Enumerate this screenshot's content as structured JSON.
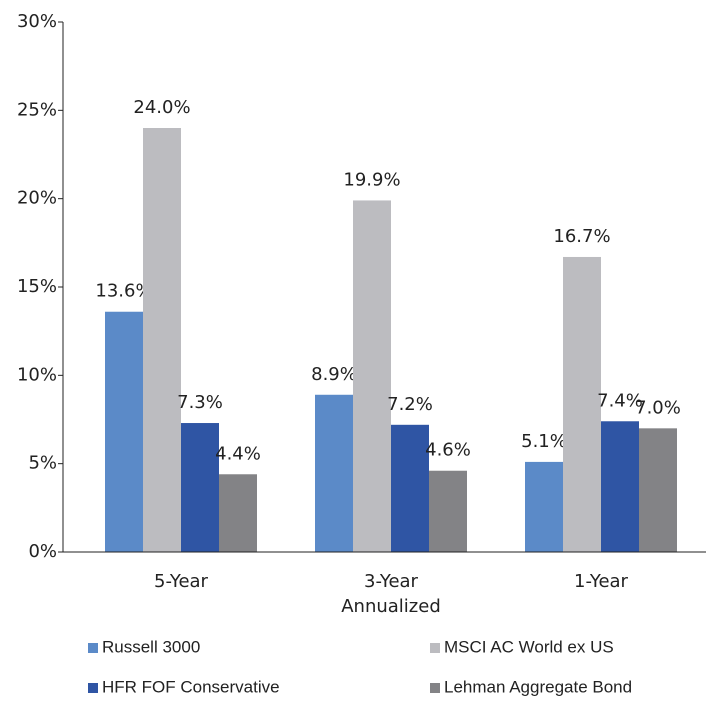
{
  "chart_data": {
    "type": "bar",
    "categories": [
      "5-Year",
      "3-Year",
      "1-Year"
    ],
    "xlabel": "Annualized",
    "series": [
      {
        "name": "Russell 3000",
        "color": "#5b8ac8",
        "values": [
          13.6,
          8.9,
          5.1
        ],
        "value_labels": [
          "13.6%",
          "8.9%",
          "5.1%"
        ]
      },
      {
        "name": "MSCI AC World ex US",
        "color": "#bcbcc0",
        "values": [
          24.0,
          19.9,
          16.7
        ],
        "value_labels": [
          "24.0%",
          "19.9%",
          "16.7%"
        ]
      },
      {
        "name": "HFR FOF Conservative",
        "color": "#2f55a4",
        "values": [
          7.3,
          7.2,
          7.4
        ],
        "value_labels": [
          "7.3%",
          "7.2%",
          "7.4%"
        ]
      },
      {
        "name": "Lehman Aggregate Bond",
        "color": "#838386",
        "values": [
          4.4,
          4.6,
          7.0
        ],
        "value_labels": [
          "4.4%",
          "4.6%",
          "7.0%"
        ]
      }
    ],
    "ylim": [
      0,
      30
    ],
    "yticks": [
      {
        "value": 0,
        "label": "0%"
      },
      {
        "value": 5,
        "label": "5%"
      },
      {
        "value": 10,
        "label": "10%"
      },
      {
        "value": 15,
        "label": "15%"
      },
      {
        "value": 20,
        "label": "20%"
      },
      {
        "value": 25,
        "label": "25%"
      },
      {
        "value": 30,
        "label": "30%"
      }
    ],
    "legend": "bottom"
  }
}
